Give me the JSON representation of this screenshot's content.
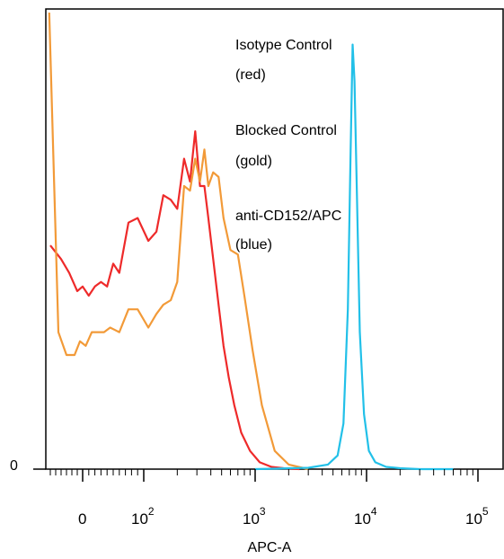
{
  "chart_data": {
    "type": "line",
    "title": "",
    "xlabel": "APC-A",
    "ylabel": "",
    "y_tick_labels": [
      "0"
    ],
    "x_ticks": [
      {
        "value": 0,
        "base": "0",
        "exp": ""
      },
      {
        "value": 100,
        "base": "10",
        "exp": "2"
      },
      {
        "value": 1000,
        "base": "10",
        "exp": "3"
      },
      {
        "value": 10000,
        "base": "10",
        "exp": "4"
      },
      {
        "value": 100000,
        "base": "10",
        "exp": "5"
      }
    ],
    "x_scale": "biexponential",
    "annotations": [
      {
        "id": "isotype",
        "lines": [
          "Isotype Control",
          "(red)"
        ]
      },
      {
        "id": "blocked",
        "lines": [
          "Blocked Control",
          "(gold)"
        ]
      },
      {
        "id": "anti",
        "lines": [
          "anti-CD152/APC",
          "(blue)"
        ]
      }
    ],
    "ylim": [
      0,
      100
    ],
    "series": [
      {
        "color": "#ee2a2a",
        "x": [
          -60,
          -40,
          -25,
          -10,
          0,
          10,
          20,
          30,
          40,
          50,
          60,
          75,
          90,
          110,
          130,
          150,
          175,
          200,
          230,
          260,
          290,
          320,
          350,
          380,
          420,
          470,
          520,
          580,
          650,
          750,
          900,
          1100,
          1400,
          1800,
          2500
        ],
        "y": [
          49,
          46,
          43,
          39,
          40,
          38,
          40,
          41,
          40,
          45,
          43,
          54,
          55,
          50,
          52,
          60,
          59,
          57,
          68,
          63,
          74,
          62,
          62,
          55,
          46,
          36,
          27,
          20,
          14,
          8,
          4,
          1.5,
          0.5,
          0.2,
          0
        ]
      },
      {
        "color": "#f29a38",
        "x": [
          -62,
          -45,
          -30,
          -15,
          -5,
          5,
          15,
          25,
          35,
          45,
          60,
          75,
          90,
          110,
          130,
          150,
          175,
          200,
          230,
          260,
          290,
          320,
          350,
          380,
          420,
          470,
          520,
          600,
          700,
          800,
          950,
          1150,
          1500,
          2000,
          3000
        ],
        "y": [
          100,
          30,
          25,
          25,
          28,
          27,
          30,
          30,
          30,
          31,
          30,
          35,
          35,
          31,
          34,
          36,
          37,
          41,
          62,
          61,
          68,
          63,
          70,
          62,
          65,
          64,
          55,
          48,
          47,
          38,
          26,
          14,
          4,
          1,
          0
        ]
      },
      {
        "color": "#22c0e8",
        "x": [
          1000,
          3000,
          4500,
          5500,
          6200,
          6800,
          7200,
          7500,
          7800,
          8200,
          8700,
          9500,
          10500,
          12000,
          15000,
          20000,
          30000,
          60000
        ],
        "y": [
          0,
          0.3,
          1,
          3,
          10,
          35,
          70,
          93,
          85,
          60,
          30,
          12,
          4,
          1.5,
          0.5,
          0.2,
          0,
          0
        ]
      }
    ]
  }
}
